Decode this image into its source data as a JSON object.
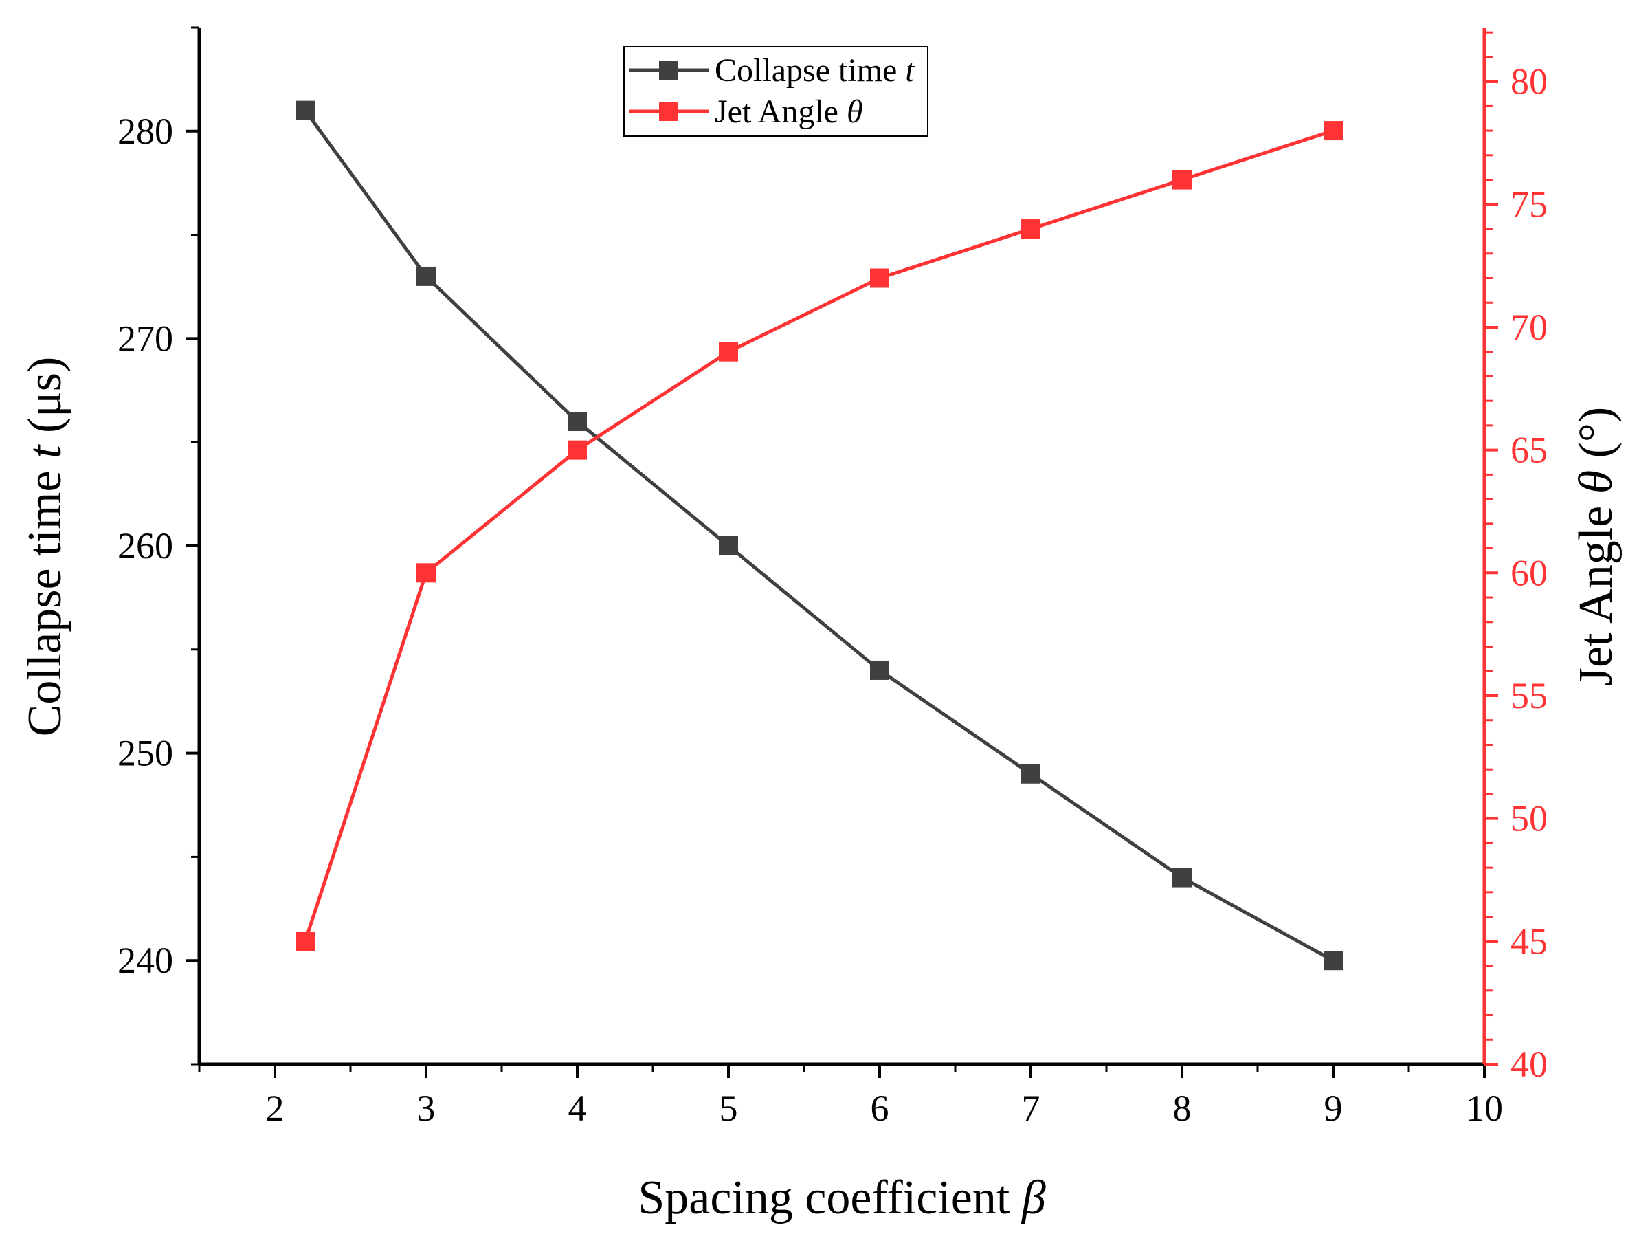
{
  "chart_data": {
    "type": "line",
    "title": "",
    "xlabel": {
      "text": "Spacing coefficient ",
      "symbol": "β"
    },
    "ylabel_left": {
      "text": "Collapse time ",
      "symbol": "t",
      "unit": " (μs)"
    },
    "ylabel_right": {
      "text": "Jet Angle ",
      "symbol": "θ",
      "unit": " (°)"
    },
    "xlim": [
      1.5,
      10
    ],
    "ylim_left": [
      235,
      285
    ],
    "ylim_right": [
      40,
      82.2
    ],
    "x_ticks": [
      "2",
      "3",
      "4",
      "5",
      "6",
      "7",
      "8",
      "9",
      "10"
    ],
    "y_left_ticks": [
      "240",
      "250",
      "260",
      "270",
      "280"
    ],
    "y_right_ticks": [
      "40",
      "45",
      "50",
      "55",
      "60",
      "65",
      "70",
      "75",
      "80"
    ],
    "legend_position": "top-center",
    "series": [
      {
        "name": "Collapse time ",
        "symbol": "t",
        "axis": "left",
        "color": "#404040",
        "marker": "square",
        "x": [
          2.2,
          3,
          4,
          5,
          6,
          7,
          8,
          9
        ],
        "values": [
          281,
          273,
          266,
          260,
          254,
          249,
          244,
          240
        ]
      },
      {
        "name": "Jet Angle ",
        "symbol": "θ",
        "axis": "right",
        "color": "#ff3333",
        "marker": "square",
        "x": [
          2.2,
          3,
          4,
          5,
          6,
          7,
          8,
          9
        ],
        "values": [
          45,
          60,
          65,
          69,
          72,
          74,
          76,
          78
        ]
      }
    ],
    "colors": {
      "right_axis": "#ff3333",
      "left_axis": "#000000",
      "frame": "#000000"
    }
  }
}
